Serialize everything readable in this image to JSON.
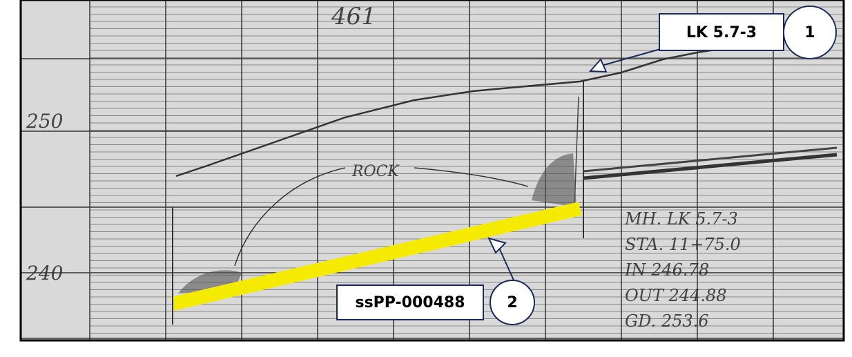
{
  "drawing": {
    "labels": {
      "top": "461",
      "elev_upper": "250",
      "elev_lower": "240",
      "rock": "ROCK"
    },
    "notes": [
      "MH. LK 5.7-3",
      "STA. 11+75.0",
      "IN 246.78",
      "OUT 244.88",
      "GD. 253.6"
    ]
  },
  "callouts": [
    {
      "label": "LK 5.7-3",
      "number": "1"
    },
    {
      "label": "ssPP-000488",
      "number": "2"
    }
  ]
}
